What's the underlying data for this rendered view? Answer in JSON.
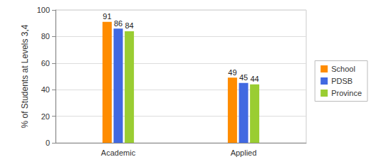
{
  "chart_data": {
    "type": "bar",
    "ylabel": "% of Students at Levels 3,4",
    "categories": [
      "Academic",
      "Applied"
    ],
    "series": [
      {
        "name": "School",
        "color": "#ff8c00",
        "values": [
          91,
          49
        ]
      },
      {
        "name": "PDSB",
        "color": "#4169e1",
        "values": [
          86,
          45
        ]
      },
      {
        "name": "Province",
        "color": "#9acd32",
        "values": [
          84,
          44
        ]
      }
    ],
    "ylim": [
      0,
      100
    ],
    "yticks": [
      0,
      20,
      40,
      60,
      80,
      100
    ],
    "grid": true,
    "data_labels": true,
    "legend": "right"
  }
}
